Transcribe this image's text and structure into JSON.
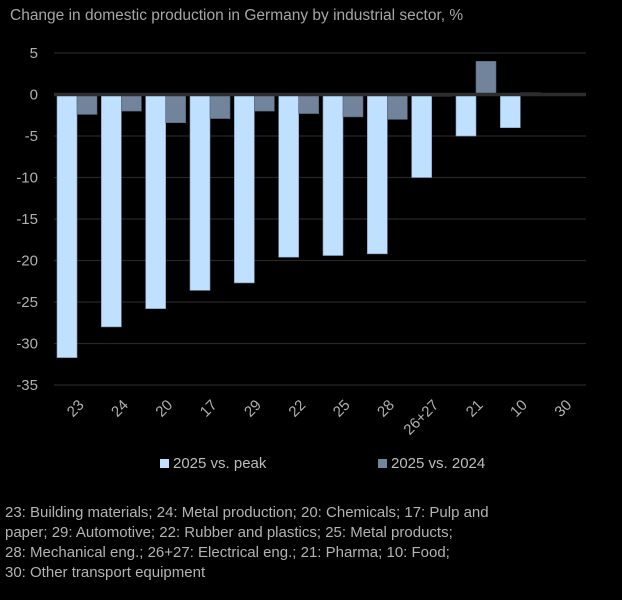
{
  "chart_data": {
    "type": "bar",
    "title": "Change in domestic production in Germany by industrial sector, %",
    "xlabel": "",
    "ylabel": "",
    "ylim": [
      -35,
      5
    ],
    "yticks": [
      5,
      0,
      -5,
      -10,
      -15,
      -20,
      -25,
      -30,
      -35
    ],
    "grid": true,
    "legend_position": "bottom",
    "categories": [
      "23",
      "24",
      "20",
      "17",
      "29",
      "22",
      "25",
      "28",
      "26+27",
      "21",
      "10",
      "30"
    ],
    "series": [
      {
        "name": "2025 vs. peak",
        "color": "#bfe0ff",
        "values": [
          -31.7,
          -28.0,
          -25.8,
          -23.6,
          -22.7,
          -19.6,
          -19.4,
          -19.2,
          -10.0,
          -5.0,
          -4.0,
          0.0
        ]
      },
      {
        "name": "2025 vs. 2024",
        "color": "#71849b",
        "values": [
          -2.4,
          -2.0,
          -3.4,
          -2.9,
          -2.0,
          -2.3,
          -2.7,
          -3.0,
          -0.2,
          4.0,
          0.2,
          0.0
        ]
      }
    ],
    "footnote": [
      "23: Building materials; 24: Metal production; 20: Chemicals; 17: Pulp and",
      "paper; 29: Automotive; 22: Rubber and plastics; 25: Metal products;",
      "28: Mechanical eng.; 26+27: Electrical eng.; 21: Pharma; 10: Food;",
      "30: Other transport equipment"
    ]
  }
}
